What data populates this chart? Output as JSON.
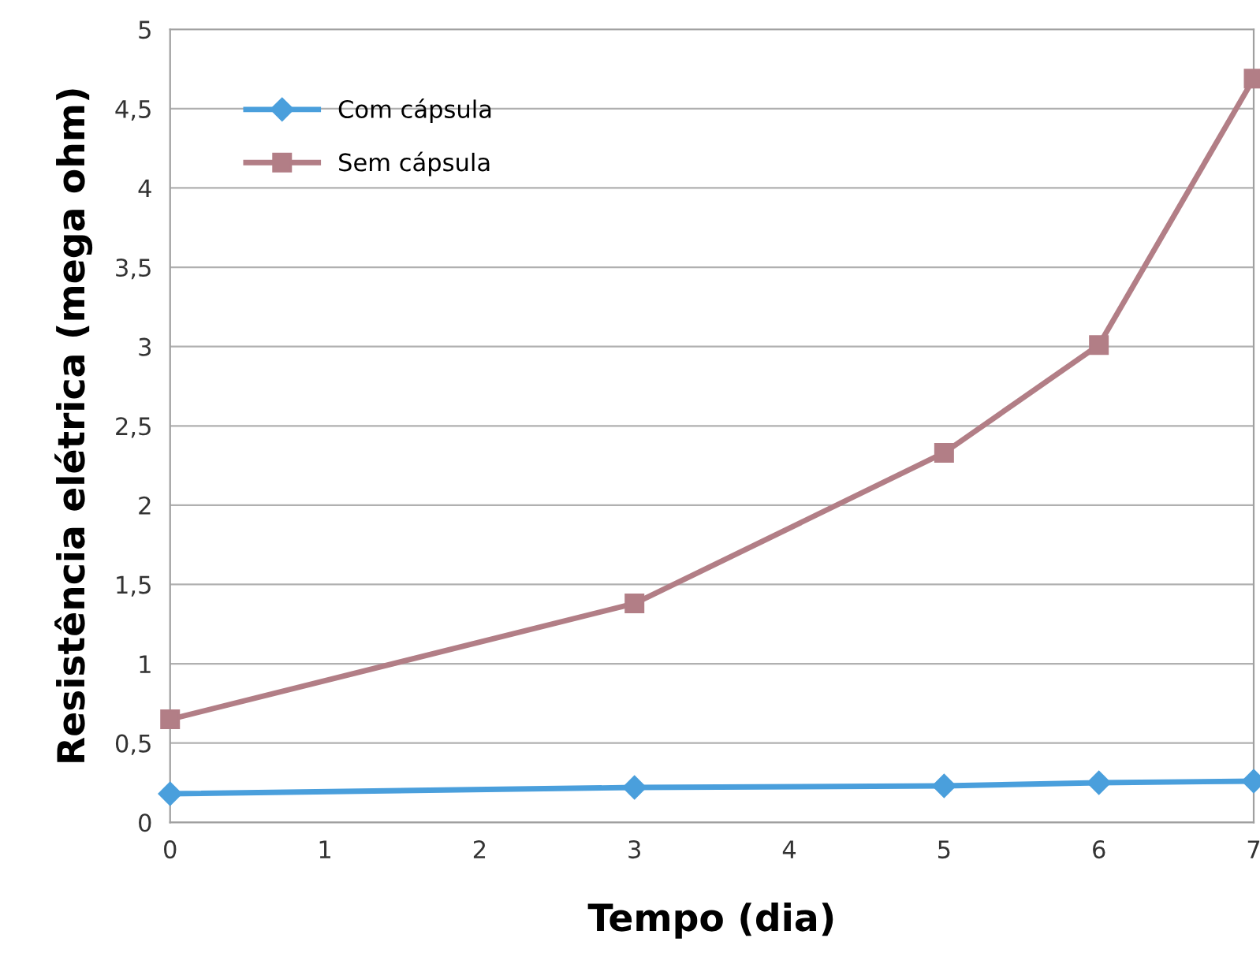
{
  "chart_data": {
    "type": "line",
    "xlabel": "Tempo (dia)",
    "ylabel": "Resistência elétrica (mega ohm)",
    "x": [
      0,
      3,
      5,
      6,
      7
    ],
    "series": [
      {
        "name": "Com cápsula",
        "color": "#4a9fdc",
        "marker": "diamond",
        "values": [
          0.18,
          0.22,
          0.23,
          0.25,
          0.26
        ]
      },
      {
        "name": "Sem cápsula",
        "color": "#b27e86",
        "marker": "square",
        "values": [
          0.65,
          1.38,
          2.33,
          3.01,
          4.69
        ]
      }
    ],
    "xlim": [
      0,
      7
    ],
    "xticks": [
      0,
      1,
      2,
      3,
      4,
      5,
      6,
      7
    ],
    "ylim": [
      0,
      5
    ],
    "yticks": [
      0,
      {
        "value": 0.5,
        "label": "0,5"
      },
      1,
      {
        "value": 1.5,
        "label": "1,5"
      },
      2,
      {
        "value": 2.5,
        "label": "2,5"
      },
      3,
      {
        "value": 3.5,
        "label": "3,5"
      },
      4,
      {
        "value": 4.5,
        "label": "4,5"
      },
      5
    ],
    "grid": "y",
    "legend": "top left",
    "line_style": "solid"
  }
}
